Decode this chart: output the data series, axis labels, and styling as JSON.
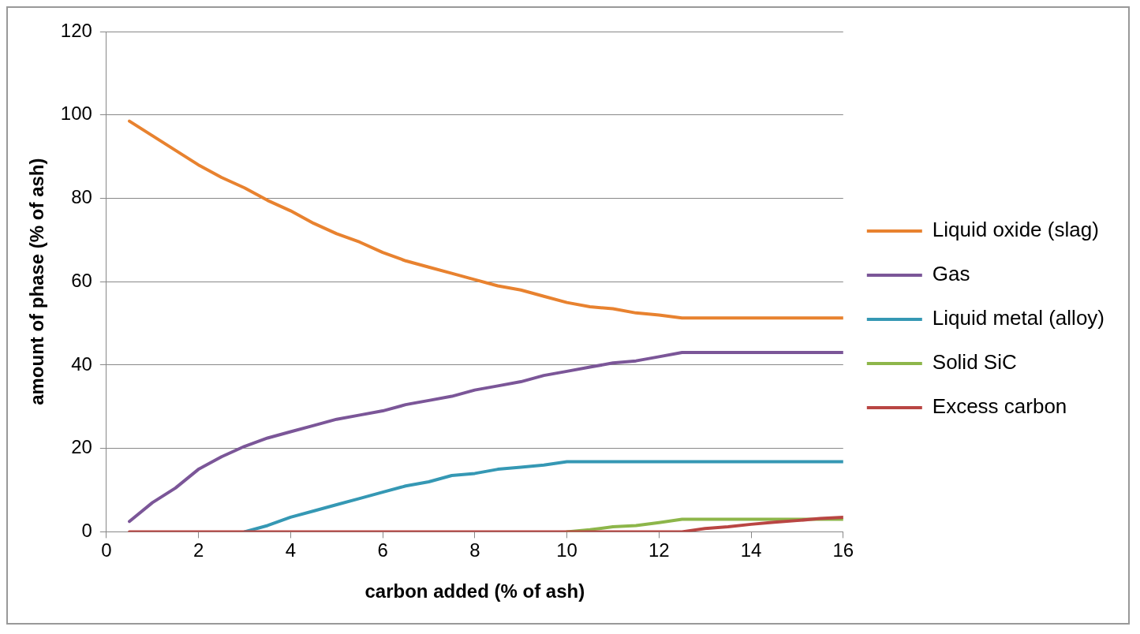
{
  "chart_data": {
    "type": "line",
    "xlabel": "carbon added (% of ash)",
    "ylabel": "amount of phase (% of ash)",
    "x": [
      0.5,
      1,
      1.5,
      2,
      2.5,
      3,
      3.5,
      4,
      4.5,
      5,
      5.5,
      6,
      6.5,
      7,
      7.5,
      8,
      8.5,
      9,
      9.5,
      10,
      10.5,
      11,
      11.5,
      12,
      12.5,
      13,
      13.5,
      14,
      14.5,
      15,
      15.5,
      16
    ],
    "series": [
      {
        "name": "Liquid oxide (slag)",
        "color": "#e8822f",
        "values": [
          98.5,
          95,
          91.5,
          88,
          85,
          82.5,
          79.5,
          77,
          74,
          71.5,
          69.5,
          67,
          65,
          63.5,
          62,
          60.5,
          59,
          58,
          56.5,
          55,
          54,
          53.5,
          52.5,
          52,
          51.3,
          51.3,
          51.3,
          51.3,
          51.3,
          51.3,
          51.3,
          51.3
        ]
      },
      {
        "name": "Gas",
        "color": "#7b5698",
        "values": [
          2.5,
          7,
          10.5,
          15,
          18,
          20.5,
          22.5,
          24,
          25.5,
          27,
          28,
          29,
          30.5,
          31.5,
          32.5,
          34,
          35,
          36,
          37.5,
          38.5,
          39.5,
          40.5,
          41,
          42,
          43,
          43,
          43,
          43,
          43,
          43,
          43,
          43
        ]
      },
      {
        "name": "Liquid metal (alloy)",
        "color": "#3598b4",
        "values": [
          null,
          null,
          null,
          null,
          null,
          0,
          1.5,
          3.5,
          5,
          6.5,
          8,
          9.5,
          11,
          12,
          13.5,
          14,
          15,
          15.5,
          16,
          16.8,
          16.8,
          16.8,
          16.8,
          16.8,
          16.8,
          16.8,
          16.8,
          16.8,
          16.8,
          16.8,
          16.8,
          16.8
        ]
      },
      {
        "name": "Solid SiC",
        "color": "#8db64a",
        "values": [
          null,
          null,
          null,
          null,
          null,
          null,
          null,
          null,
          null,
          null,
          null,
          null,
          null,
          null,
          null,
          null,
          null,
          null,
          null,
          0,
          0.5,
          1.2,
          1.5,
          2.2,
          3,
          3,
          3,
          3,
          3,
          3,
          3,
          3
        ]
      },
      {
        "name": "Excess carbon",
        "color": "#b94643",
        "values": [
          0,
          0,
          0,
          0,
          0,
          0,
          0,
          0,
          0,
          0,
          0,
          0,
          0,
          0,
          0,
          0,
          0,
          0,
          0,
          0,
          0,
          0,
          0,
          0,
          0,
          0.8,
          1.2,
          1.8,
          2.3,
          2.7,
          3.2,
          3.5
        ]
      }
    ],
    "xlim": [
      0,
      16
    ],
    "xticks": [
      0,
      2,
      4,
      6,
      8,
      10,
      12,
      14,
      16
    ],
    "ylim": [
      0,
      120
    ],
    "yticks": [
      0,
      20,
      40,
      60,
      80,
      100,
      120
    ],
    "grid": "y",
    "legend": "right",
    "marker": "none",
    "line_style": "solid"
  }
}
